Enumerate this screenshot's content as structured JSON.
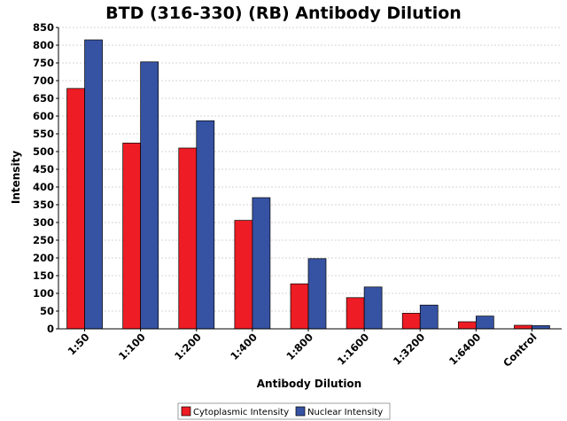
{
  "chart_data": {
    "type": "bar",
    "title": "BTD (316-330) (RB) Antibody Dilution",
    "xlabel": "Antibody Dilution",
    "ylabel": "Intensity",
    "categories": [
      "1:50",
      "1:100",
      "1:200",
      "1:400",
      "1:800",
      "1:1600",
      "1:3200",
      "1:6400",
      "Control"
    ],
    "series": [
      {
        "name": "Cytoplasmic Intensity",
        "color": "#ee1c24",
        "values": [
          678,
          524,
          510,
          306,
          127,
          88,
          44,
          20,
          10
        ]
      },
      {
        "name": "Nuclear Intensity",
        "color": "#3652a3",
        "values": [
          815,
          753,
          587,
          370,
          198,
          118,
          67,
          36,
          9
        ]
      }
    ],
    "ylim": [
      0,
      850
    ],
    "yticks": [
      0,
      50,
      100,
      150,
      200,
      250,
      300,
      350,
      400,
      450,
      500,
      550,
      600,
      650,
      700,
      750,
      800,
      850
    ],
    "grid": true,
    "legend_position": "bottom-center"
  }
}
